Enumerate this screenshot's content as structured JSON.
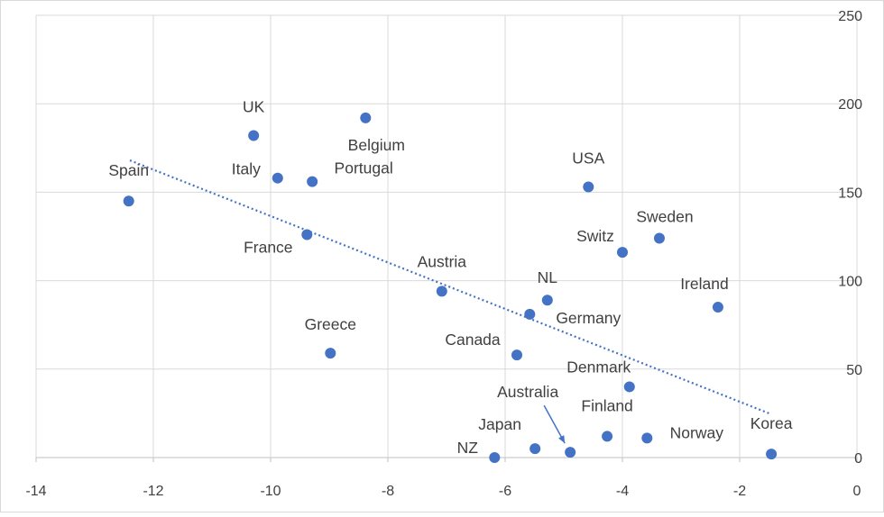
{
  "chart_data": {
    "type": "scatter",
    "title": "",
    "xlabel": "",
    "ylabel": "",
    "xlim": [
      -14,
      0
    ],
    "ylim": [
      0,
      250
    ],
    "xticks": [
      -14,
      -12,
      -10,
      -8,
      -6,
      -4,
      -2,
      0
    ],
    "yticks": [
      0,
      50,
      100,
      150,
      200,
      250
    ],
    "xtick_labels": [
      "-14",
      "-12",
      "-10",
      "-8",
      "-6",
      "-4",
      "-2",
      "0"
    ],
    "ytick_labels": [
      "0",
      "50",
      "100",
      "150",
      "200",
      "250"
    ],
    "grid": true,
    "y_axis_side": "right",
    "marker_color": "#4472C4",
    "trendline": {
      "type": "linear",
      "style": "dotted",
      "color": "#4472C4",
      "x": [
        -12.4,
        -1.5
      ],
      "y": [
        168,
        25
      ]
    },
    "points": [
      {
        "label": "Spain",
        "x": -12.42,
        "y": 145
      },
      {
        "label": "UK",
        "x": -10.29,
        "y": 182
      },
      {
        "label": "Italy",
        "x": -9.88,
        "y": 158
      },
      {
        "label": "Portugal",
        "x": -9.29,
        "y": 156
      },
      {
        "label": "Belgium",
        "x": -8.38,
        "y": 192
      },
      {
        "label": "France",
        "x": -9.38,
        "y": 126
      },
      {
        "label": "Greece",
        "x": -8.98,
        "y": 59
      },
      {
        "label": "Austria",
        "x": -7.08,
        "y": 94
      },
      {
        "label": "NL",
        "x": -5.28,
        "y": 89
      },
      {
        "label": "Germany",
        "x": -5.58,
        "y": 81
      },
      {
        "label": "Canada",
        "x": -5.8,
        "y": 58
      },
      {
        "label": "USA",
        "x": -4.58,
        "y": 153
      },
      {
        "label": "Switz",
        "x": -4.0,
        "y": 116
      },
      {
        "label": "Sweden",
        "x": -3.37,
        "y": 124
      },
      {
        "label": "Ireland",
        "x": -2.37,
        "y": 85
      },
      {
        "label": "Denmark",
        "x": -3.88,
        "y": 40
      },
      {
        "label": "Finland",
        "x": -4.26,
        "y": 12
      },
      {
        "label": "Norway",
        "x": -3.58,
        "y": 11
      },
      {
        "label": "Korea",
        "x": -1.46,
        "y": 2
      },
      {
        "label": "Japan",
        "x": -5.49,
        "y": 5
      },
      {
        "label": "Australia",
        "x": -4.89,
        "y": 3
      },
      {
        "label": "NZ",
        "x": -6.18,
        "y": 0
      }
    ]
  }
}
